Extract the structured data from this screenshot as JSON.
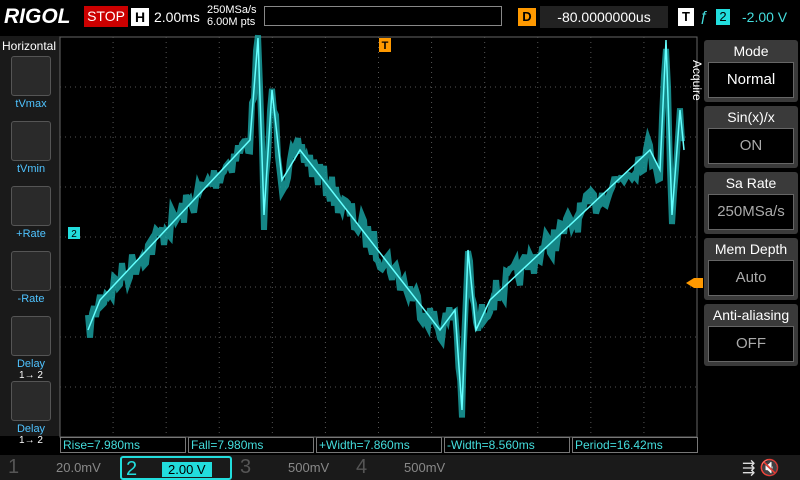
{
  "top_bar": {
    "brand": "RIGOL",
    "status": "STOP",
    "timebase_label": "H",
    "timebase": "2.00ms",
    "sample_rate": "250MSa/s",
    "memory": "6.00M pts",
    "delay_label": "D",
    "delay": "-80.0000000us",
    "trigger_label": "T",
    "trigger_source": "2",
    "trigger_level": "-2.00 V"
  },
  "left_menu": {
    "title": "Horizontal",
    "items": [
      {
        "label": "tVmax"
      },
      {
        "label": "tVmin"
      },
      {
        "label": "+Rate"
      },
      {
        "label": "-Rate"
      },
      {
        "label": "Delay",
        "sub": "1→ 2"
      },
      {
        "label": "Delay",
        "sub": "1→ 2"
      }
    ]
  },
  "right_menu": {
    "title": "Acquire",
    "items": [
      {
        "label": "Mode",
        "value": "Normal"
      },
      {
        "label": "Sin(x)/x",
        "value": "ON"
      },
      {
        "label": "Sa Rate",
        "value": "250MSa/s"
      },
      {
        "label": "Mem Depth",
        "value": "Auto"
      },
      {
        "label": "Anti-aliasing",
        "value": "OFF"
      }
    ]
  },
  "markers": {
    "channel": "2",
    "trigger": "T"
  },
  "measurements": [
    "Rise=7.980ms",
    "Fall=7.980ms",
    "+Width=7.860ms",
    "-Width=8.560ms",
    "Period=16.42ms"
  ],
  "channels": [
    {
      "number": "1",
      "scale": "20.0mV"
    },
    {
      "number": "2",
      "scale": "2.00 V"
    },
    {
      "number": "3",
      "scale": "500mV"
    },
    {
      "number": "4",
      "scale": "500mV"
    }
  ]
}
